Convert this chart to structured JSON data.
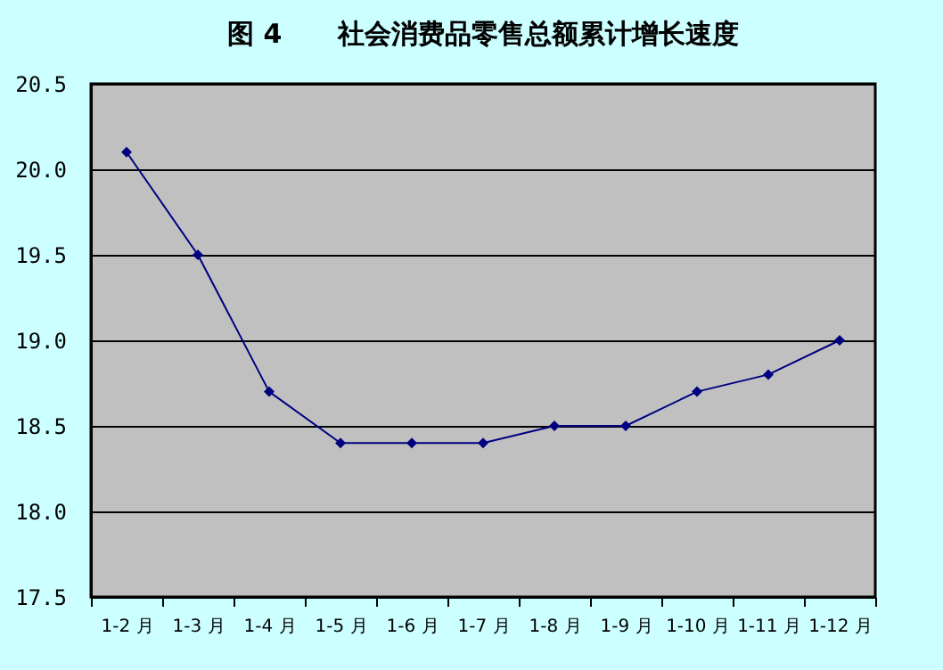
{
  "chart_data": {
    "type": "line",
    "title": "图 4      社会消费品零售总额累计增长速度",
    "categories": [
      "1-2 月",
      "1-3 月",
      "1-4 月",
      "1-5 月",
      "1-6 月",
      "1-7 月",
      "1-8 月",
      "1-9 月",
      "1-10 月",
      "1-11 月",
      "1-12 月"
    ],
    "series": [
      {
        "color": "#000080",
        "values": [
          20.1,
          19.5,
          18.7,
          18.4,
          18.4,
          18.4,
          18.5,
          18.5,
          18.7,
          18.8,
          19.0
        ]
      }
    ],
    "ylim": [
      17.5,
      20.5
    ],
    "yticks": [
      17.5,
      {
        "value": 18,
        "label": "18.0"
      },
      18.5,
      {
        "value": 19,
        "label": "19.0"
      },
      19.5,
      {
        "value": 20,
        "label": "20.0"
      },
      20.5
    ],
    "grid": "y",
    "marker": "diamond",
    "line_style": "solid"
  }
}
